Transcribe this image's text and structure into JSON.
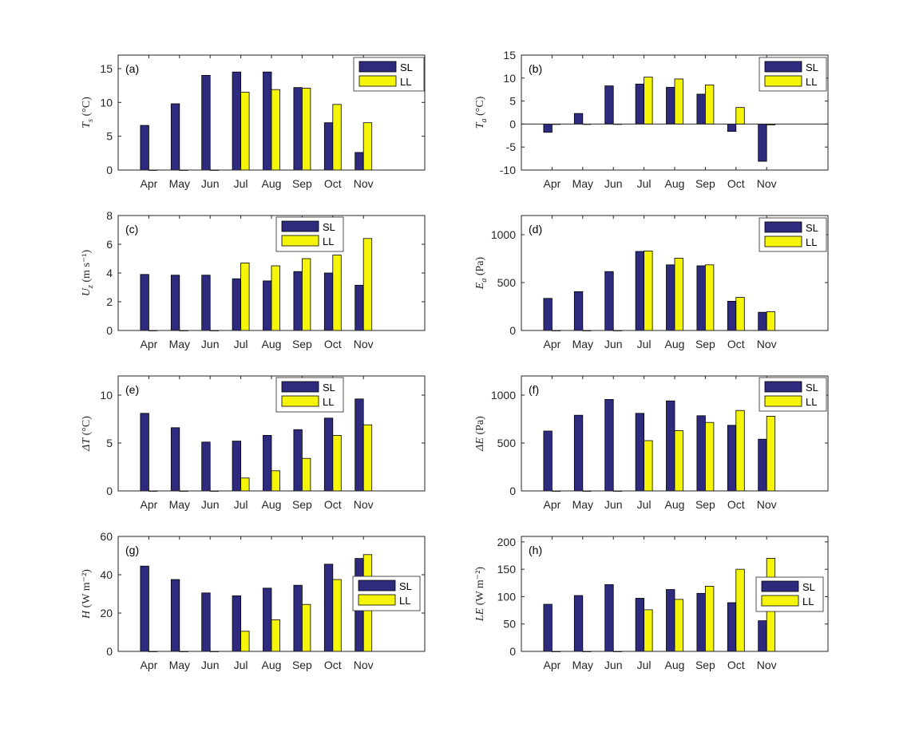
{
  "colors": {
    "SL": "#2e2a7e",
    "LL": "#f5f50a",
    "axis": "#262626",
    "zero_line": "#262626"
  },
  "chart_data": [
    {
      "type": "bar",
      "panel": "(a)",
      "categories": [
        "Apr",
        "May",
        "Jun",
        "Jul",
        "Aug",
        "Sep",
        "Oct",
        "Nov"
      ],
      "series": [
        {
          "name": "SL",
          "values": [
            6.6,
            9.8,
            14.0,
            14.5,
            14.5,
            12.2,
            7.0,
            2.6
          ]
        },
        {
          "name": "LL",
          "values": [
            0,
            0,
            0,
            11.5,
            11.9,
            12.1,
            9.7,
            7.0
          ]
        }
      ],
      "ylabel_main": "T",
      "ylabel_sub": "s",
      "ylabel_unit": " (°C)",
      "ylim": [
        0,
        17
      ],
      "yticks": [
        0,
        5,
        10,
        15
      ],
      "legend": [
        "SL",
        "LL"
      ],
      "legend_position": "top-right",
      "zero_line": false
    },
    {
      "type": "bar",
      "panel": "(b)",
      "categories": [
        "Apr",
        "May",
        "Jun",
        "Jul",
        "Aug",
        "Sep",
        "Oct",
        "Nov"
      ],
      "series": [
        {
          "name": "SL",
          "values": [
            -1.8,
            2.3,
            8.3,
            8.7,
            8.0,
            6.5,
            -1.6,
            -8.1
          ]
        },
        {
          "name": "LL",
          "values": [
            0,
            0,
            0,
            10.2,
            9.8,
            8.5,
            3.6,
            -0.2
          ]
        }
      ],
      "ylabel_main": "T",
      "ylabel_sub": "a",
      "ylabel_unit": " (°C)",
      "ylim": [
        -10,
        15
      ],
      "yticks": [
        -10,
        -5,
        0,
        5,
        10,
        15
      ],
      "legend": [
        "SL",
        "LL"
      ],
      "legend_position": "top-right",
      "zero_line": true
    },
    {
      "type": "bar",
      "panel": "(c)",
      "categories": [
        "Apr",
        "May",
        "Jun",
        "Jul",
        "Aug",
        "Sep",
        "Oct",
        "Nov"
      ],
      "series": [
        {
          "name": "SL",
          "values": [
            3.9,
            3.85,
            3.85,
            3.6,
            3.45,
            4.1,
            4.0,
            3.15
          ]
        },
        {
          "name": "LL",
          "values": [
            0,
            0,
            0,
            4.7,
            4.5,
            5.0,
            5.25,
            6.4
          ]
        }
      ],
      "ylabel_main": "U",
      "ylabel_sub": "z",
      "ylabel_unit": " (m s⁻¹)",
      "ylim": [
        0,
        8
      ],
      "yticks": [
        0,
        2,
        4,
        6,
        8
      ],
      "legend": [
        "SL",
        "LL"
      ],
      "legend_position": "top-center-right",
      "zero_line": false
    },
    {
      "type": "bar",
      "panel": "(d)",
      "categories": [
        "Apr",
        "May",
        "Jun",
        "Jul",
        "Aug",
        "Sep",
        "Oct",
        "Nov"
      ],
      "series": [
        {
          "name": "SL",
          "values": [
            335,
            405,
            615,
            825,
            685,
            675,
            305,
            190
          ]
        },
        {
          "name": "LL",
          "values": [
            0,
            0,
            0,
            830,
            755,
            685,
            345,
            195
          ]
        }
      ],
      "ylabel_main": "E",
      "ylabel_sub": "a",
      "ylabel_unit": " (Pa)",
      "ylim": [
        0,
        1200
      ],
      "yticks": [
        0,
        500,
        1000
      ],
      "legend": [
        "SL",
        "LL"
      ],
      "legend_position": "top-right",
      "zero_line": false
    },
    {
      "type": "bar",
      "panel": "(e)",
      "categories": [
        "Apr",
        "May",
        "Jun",
        "Jul",
        "Aug",
        "Sep",
        "Oct",
        "Nov"
      ],
      "series": [
        {
          "name": "SL",
          "values": [
            8.1,
            6.6,
            5.1,
            5.2,
            5.8,
            6.4,
            7.6,
            9.6
          ]
        },
        {
          "name": "LL",
          "values": [
            0,
            0,
            0,
            1.35,
            2.1,
            3.4,
            5.8,
            6.9
          ]
        }
      ],
      "ylabel_main": "ΔT",
      "ylabel_sub": "",
      "ylabel_unit": " (°C)",
      "ylim": [
        0,
        12
      ],
      "yticks": [
        0,
        5,
        10
      ],
      "legend": [
        "SL",
        "LL"
      ],
      "legend_position": "top-center-right",
      "zero_line": false
    },
    {
      "type": "bar",
      "panel": "(f)",
      "categories": [
        "Apr",
        "May",
        "Jun",
        "Jul",
        "Aug",
        "Sep",
        "Oct",
        "Nov"
      ],
      "series": [
        {
          "name": "SL",
          "values": [
            625,
            790,
            955,
            810,
            940,
            785,
            685,
            540
          ]
        },
        {
          "name": "LL",
          "values": [
            0,
            0,
            0,
            525,
            630,
            715,
            840,
            780
          ]
        }
      ],
      "ylabel_main": "ΔE",
      "ylabel_sub": "",
      "ylabel_unit": " (Pa)",
      "ylim": [
        0,
        1200
      ],
      "yticks": [
        0,
        500,
        1000
      ],
      "legend": [
        "SL",
        "LL"
      ],
      "legend_position": "top-right",
      "zero_line": false
    },
    {
      "type": "bar",
      "panel": "(g)",
      "categories": [
        "Apr",
        "May",
        "Jun",
        "Jul",
        "Aug",
        "Sep",
        "Oct",
        "Nov"
      ],
      "series": [
        {
          "name": "SL",
          "values": [
            44.5,
            37.5,
            30.5,
            29.0,
            33.0,
            34.5,
            45.5,
            48.5
          ]
        },
        {
          "name": "LL",
          "values": [
            0,
            0,
            0,
            10.5,
            16.5,
            24.5,
            37.5,
            50.5
          ]
        }
      ],
      "ylabel_main": "H",
      "ylabel_sub": "",
      "ylabel_unit": " (W m⁻²)",
      "ylim": [
        0,
        60
      ],
      "yticks": [
        0,
        20,
        40,
        60
      ],
      "legend": [
        "SL",
        "LL"
      ],
      "legend_position": "right",
      "zero_line": false
    },
    {
      "type": "bar",
      "panel": "(h)",
      "categories": [
        "Apr",
        "May",
        "Jun",
        "Jul",
        "Aug",
        "Sep",
        "Oct",
        "Nov"
      ],
      "series": [
        {
          "name": "SL",
          "values": [
            86,
            102,
            122,
            97,
            113,
            106,
            89,
            56
          ]
        },
        {
          "name": "LL",
          "values": [
            0,
            0,
            0,
            76,
            95,
            119,
            150,
            170
          ]
        }
      ],
      "ylabel_main": "LE",
      "ylabel_sub": "",
      "ylabel_unit": " (W m⁻²)",
      "ylim": [
        0,
        210
      ],
      "yticks": [
        0,
        50,
        100,
        150,
        200
      ],
      "legend": [
        "SL",
        "LL"
      ],
      "legend_position": "right",
      "zero_line": false
    }
  ]
}
